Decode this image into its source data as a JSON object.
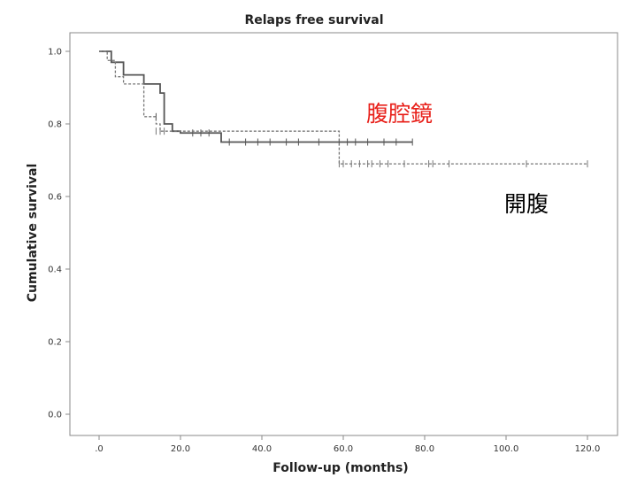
{
  "chart_data": {
    "type": "line",
    "step": true,
    "title": "Relaps free survival",
    "xlabel": "Follow-up (months)",
    "ylabel": "Cumulative survival",
    "xlim": [
      0,
      120
    ],
    "ylim": [
      0,
      1.0
    ],
    "xticks": [
      0,
      20,
      40,
      60,
      80,
      100,
      120
    ],
    "xtick_labels": [
      ".0",
      "20.0",
      "40.0",
      "60.0",
      "80.0",
      "100.0",
      "120.0"
    ],
    "yticks": [
      0,
      0.2,
      0.4,
      0.6,
      0.8,
      1.0
    ],
    "ytick_labels": [
      "0.0",
      "0.2",
      "0.4",
      "0.6",
      "0.8",
      "1.0"
    ],
    "grid": false,
    "legend": "none",
    "series": [
      {
        "name": "腹腔鏡",
        "style": "solid",
        "color": "#555555",
        "steps": [
          [
            0,
            1.0
          ],
          [
            3,
            0.97
          ],
          [
            6,
            0.935
          ],
          [
            11,
            0.91
          ],
          [
            15,
            0.885
          ],
          [
            16,
            0.8
          ],
          [
            18,
            0.78
          ],
          [
            20,
            0.775
          ],
          [
            30,
            0.75
          ],
          [
            77,
            0.75
          ]
        ],
        "censored": [
          [
            14,
            0.82
          ],
          [
            23,
            0.775
          ],
          [
            25,
            0.775
          ],
          [
            27,
            0.775
          ],
          [
            32,
            0.75
          ],
          [
            36,
            0.75
          ],
          [
            39,
            0.75
          ],
          [
            42,
            0.75
          ],
          [
            46,
            0.75
          ],
          [
            49,
            0.75
          ],
          [
            54,
            0.75
          ],
          [
            59,
            0.75
          ],
          [
            61,
            0.75
          ],
          [
            63,
            0.75
          ],
          [
            66,
            0.75
          ],
          [
            70,
            0.75
          ],
          [
            73,
            0.75
          ],
          [
            77,
            0.75
          ]
        ]
      },
      {
        "name": "開腹",
        "style": "dashed",
        "color": "#777777",
        "steps": [
          [
            0,
            1.0
          ],
          [
            2,
            0.975
          ],
          [
            4,
            0.93
          ],
          [
            6,
            0.91
          ],
          [
            11,
            0.82
          ],
          [
            14,
            0.8
          ],
          [
            15,
            0.78
          ],
          [
            58,
            0.78
          ],
          [
            59,
            0.69
          ],
          [
            120,
            0.69
          ]
        ],
        "censored": [
          [
            14,
            0.78
          ],
          [
            15,
            0.78
          ],
          [
            16,
            0.78
          ],
          [
            59,
            0.69
          ],
          [
            60,
            0.69
          ],
          [
            62,
            0.69
          ],
          [
            64,
            0.69
          ],
          [
            66,
            0.69
          ],
          [
            67,
            0.69
          ],
          [
            69,
            0.69
          ],
          [
            71,
            0.69
          ],
          [
            75,
            0.69
          ],
          [
            81,
            0.69
          ],
          [
            82,
            0.69
          ],
          [
            86,
            0.69
          ],
          [
            105,
            0.69
          ],
          [
            120,
            0.69
          ]
        ]
      }
    ],
    "annotations": [
      {
        "text": "腹腔鏡",
        "color": "#e8201a"
      },
      {
        "text": "開腹",
        "color": "#000000"
      }
    ]
  }
}
